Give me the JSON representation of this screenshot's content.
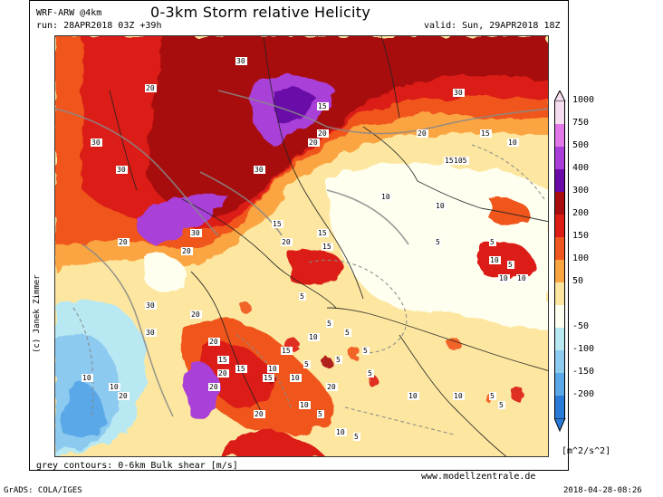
{
  "header": {
    "model": "WRF-ARW @4km",
    "title": "0-3km Storm relative Helicity",
    "run": "run: 28APR2018 03Z +39h",
    "valid": "valid: Sun, 29APR2018 18Z"
  },
  "footer": {
    "contours_note": "grey contours: 0-6km Bulk shear [m/s]",
    "website": "www.modellzentrale.de",
    "software": "GrADS: COLA/IGES",
    "timestamp": "2018-04-28-08:26",
    "unit": "[m^2/s^2]"
  },
  "author": "(c) Janek Zimmer",
  "legend": {
    "levels": [
      {
        "label": "1000",
        "color": "#f6dcef"
      },
      {
        "label": "750",
        "color": "#e278e8"
      },
      {
        "label": "500",
        "color": "#a93fd8"
      },
      {
        "label": "400",
        "color": "#6a0aa8"
      },
      {
        "label": "300",
        "color": "#a80d10"
      },
      {
        "label": "200",
        "color": "#dc1e16"
      },
      {
        "label": "150",
        "color": "#f0561f"
      },
      {
        "label": "100",
        "color": "#fba542"
      },
      {
        "label": "50",
        "color": "#fde7a0"
      },
      {
        "label": "",
        "color": "#fffff0"
      },
      {
        "label": "-50",
        "color": "#b8e8f2"
      },
      {
        "label": "-100",
        "color": "#8ccaf0"
      },
      {
        "label": "-150",
        "color": "#5aa8e8"
      },
      {
        "label": "-200",
        "color": "#2a7ad8"
      }
    ]
  },
  "map": {
    "contour_labels": [
      "30",
      "20",
      "30",
      "30",
      "20",
      "15",
      "20",
      "30",
      "20",
      "30",
      "20",
      "15",
      "10",
      "15",
      "105",
      "30",
      "10",
      "30",
      "20",
      "10",
      "20",
      "15",
      "15",
      "15",
      "20",
      "5",
      "5",
      "10",
      "5",
      "15",
      "30",
      "10",
      "20",
      "5",
      "5",
      "20",
      "15",
      "15",
      "20",
      "20",
      "10",
      "10",
      "5",
      "5",
      "10",
      "5",
      "5",
      "20",
      "10",
      "5",
      "10",
      "5",
      "20",
      "15",
      "10",
      "10",
      "5",
      "5",
      "10",
      "5",
      "10",
      "10"
    ]
  }
}
